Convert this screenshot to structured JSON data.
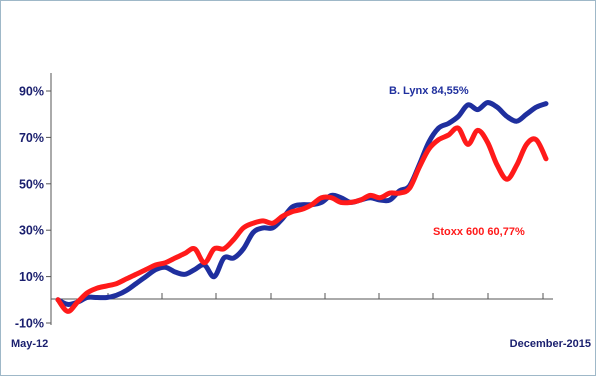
{
  "chart_data": {
    "type": "line",
    "title": "",
    "xlabel": "",
    "ylabel": "",
    "ylim": [
      -10,
      100
    ],
    "y_ticks": [
      -10,
      10,
      30,
      50,
      70,
      90
    ],
    "y_tick_labels": [
      "-10%",
      "10%",
      "30%",
      "50%",
      "70%",
      "90%"
    ],
    "x_labels": {
      "start": "May-12",
      "end": "December-2015"
    },
    "grid": false,
    "series": [
      {
        "name": "B. Lynx",
        "annotation": "B. Lynx 84,55%",
        "color": "#1f2f9e",
        "values": [
          0,
          -2,
          -1,
          1,
          1,
          1,
          2,
          4,
          7,
          10,
          13,
          14,
          12,
          11,
          13,
          15,
          10,
          18,
          18,
          22,
          29,
          31,
          31,
          35,
          40,
          41,
          41,
          42,
          45,
          44,
          42,
          43,
          44,
          43,
          43,
          47,
          49,
          58,
          68,
          74,
          76,
          79,
          84,
          82,
          85,
          83,
          79,
          77,
          80,
          83,
          84.55
        ]
      },
      {
        "name": "Stoxx 600",
        "annotation": "Stoxx 600 60,77%",
        "color": "#ff1a1a",
        "values": [
          0,
          -5,
          -1,
          3,
          5,
          6,
          7,
          9,
          11,
          13,
          15,
          16,
          18,
          20,
          22,
          16,
          22,
          22,
          26,
          31,
          33,
          34,
          33,
          36,
          38,
          39,
          41,
          44,
          44,
          42,
          42,
          43,
          45,
          44,
          46,
          46,
          48,
          57,
          65,
          69,
          71,
          74,
          67,
          73,
          68,
          58,
          52,
          58,
          67,
          69,
          60.77
        ]
      }
    ]
  }
}
